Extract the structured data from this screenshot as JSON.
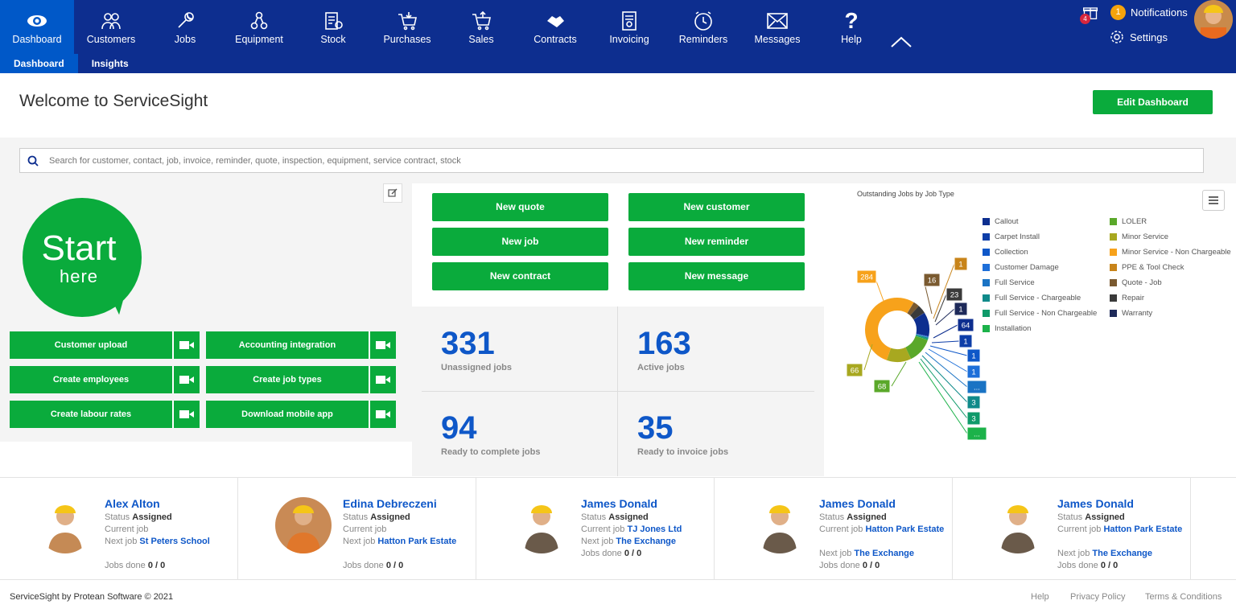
{
  "nav": {
    "items": [
      {
        "label": "Dashboard",
        "icon": "eye-icon"
      },
      {
        "label": "Customers",
        "icon": "users-icon"
      },
      {
        "label": "Jobs",
        "icon": "wrench-icon"
      },
      {
        "label": "Equipment",
        "icon": "gears-icon"
      },
      {
        "label": "Stock",
        "icon": "stock-icon"
      },
      {
        "label": "Purchases",
        "icon": "cart-icon"
      },
      {
        "label": "Sales",
        "icon": "cart-plus-icon"
      },
      {
        "label": "Contracts",
        "icon": "handshake-icon"
      },
      {
        "label": "Invoicing",
        "icon": "invoice-icon"
      },
      {
        "label": "Reminders",
        "icon": "clock-icon"
      },
      {
        "label": "Messages",
        "icon": "envelope-icon"
      },
      {
        "label": "Help",
        "icon": "question-icon"
      }
    ],
    "subtabs": [
      "Dashboard",
      "Insights"
    ],
    "gift_count": "4",
    "notifications_count": "1",
    "notifications_label": "Notifications",
    "settings_label": "Settings"
  },
  "header": {
    "title": "Welcome to ServiceSight",
    "edit_button": "Edit Dashboard"
  },
  "search": {
    "placeholder": "Search for customer, contact, job, invoice, reminder, quote, inspection, equipment, service contract, stock"
  },
  "start": {
    "big": "Start",
    "small": "here",
    "buttons": [
      "Customer upload",
      "Accounting integration",
      "Create employees",
      "Create job types",
      "Create labour rates",
      "Download mobile app"
    ]
  },
  "quick_actions": [
    "New quote",
    "New customer",
    "New job",
    "New reminder",
    "New contract",
    "New message"
  ],
  "stats": [
    {
      "value": "331",
      "label": "Unassigned jobs"
    },
    {
      "value": "163",
      "label": "Active jobs"
    },
    {
      "value": "94",
      "label": "Ready to complete jobs"
    },
    {
      "value": "35",
      "label": "Ready to invoice jobs"
    }
  ],
  "chart_data": {
    "type": "pie",
    "title": "Outstanding Jobs by Job Type",
    "donut": true,
    "slices": [
      {
        "name": "Callout",
        "value": 64,
        "color": "#0d2e8f",
        "label": "64"
      },
      {
        "name": "Carpet Install",
        "value": 1,
        "color": "#0e3ea8",
        "label": "1"
      },
      {
        "name": "Collection",
        "value": 1,
        "color": "#0e57c8",
        "label": "1"
      },
      {
        "name": "Customer Damage",
        "value": 1,
        "color": "#1e6fd9",
        "label": "1"
      },
      {
        "name": "Full Service",
        "value": 1,
        "color": "#1a73c4",
        "label": "..."
      },
      {
        "name": "Full Service - Chargeable",
        "value": 3,
        "color": "#0f8a8a",
        "label": "3"
      },
      {
        "name": "Full Service - Non Chargeable",
        "value": 3,
        "color": "#0f9a6a",
        "label": "3"
      },
      {
        "name": "Installation",
        "value": 1,
        "color": "#1cb24a",
        "label": "..."
      },
      {
        "name": "LOLER",
        "value": 68,
        "color": "#5aa82a",
        "label": "68"
      },
      {
        "name": "Minor Service",
        "value": 66,
        "color": "#a8a820",
        "label": "66"
      },
      {
        "name": "Minor Service - Non Chargeable",
        "value": 284,
        "color": "#f7a21b",
        "label": "284"
      },
      {
        "name": "PPE & Tool Check",
        "value": 1,
        "color": "#c8841a",
        "label": "1"
      },
      {
        "name": "Quote - Job",
        "value": 16,
        "color": "#7a5a30",
        "label": "16"
      },
      {
        "name": "Repair",
        "value": 23,
        "color": "#3a3a3a",
        "label": "23"
      },
      {
        "name": "Warranty",
        "value": 1,
        "color": "#1e2a5a",
        "label": "1"
      }
    ]
  },
  "engineers": [
    {
      "name": "Alex Alton",
      "status_label": "Status",
      "status": "Assigned",
      "current_label": "Current job",
      "current": "",
      "next_label": "Next job",
      "next": "St Peters School",
      "done_label": "Jobs done",
      "done": "0 / 0"
    },
    {
      "name": "Edina Debreczeni",
      "status_label": "Status",
      "status": "Assigned",
      "current_label": "Current job",
      "current": "",
      "next_label": "Next job",
      "next": "Hatton Park Estate",
      "done_label": "Jobs done",
      "done": "0 / 0"
    },
    {
      "name": "James Donald",
      "status_label": "Status",
      "status": "Assigned",
      "current_label": "Current job",
      "current": "TJ Jones Ltd",
      "next_label": "Next job",
      "next": "The Exchange",
      "done_label": "Jobs done",
      "done": "0 / 0"
    },
    {
      "name": "James Donald",
      "status_label": "Status",
      "status": "Assigned",
      "current_label": "Current job",
      "current": "Hatton Park Estate",
      "next_label": "Next job",
      "next": "The Exchange",
      "done_label": "Jobs done",
      "done": "0 / 0"
    },
    {
      "name": "James Donald",
      "status_label": "Status",
      "status": "Assigned",
      "current_label": "Current job",
      "current": "Hatton Park Estate",
      "next_label": "Next job",
      "next": "The Exchange",
      "done_label": "Jobs done",
      "done": "0 / 0"
    }
  ],
  "footer": {
    "copyright": "ServiceSight by Protean Software © 2021",
    "links": [
      "Help",
      "Privacy Policy",
      "Terms & Conditions"
    ]
  }
}
